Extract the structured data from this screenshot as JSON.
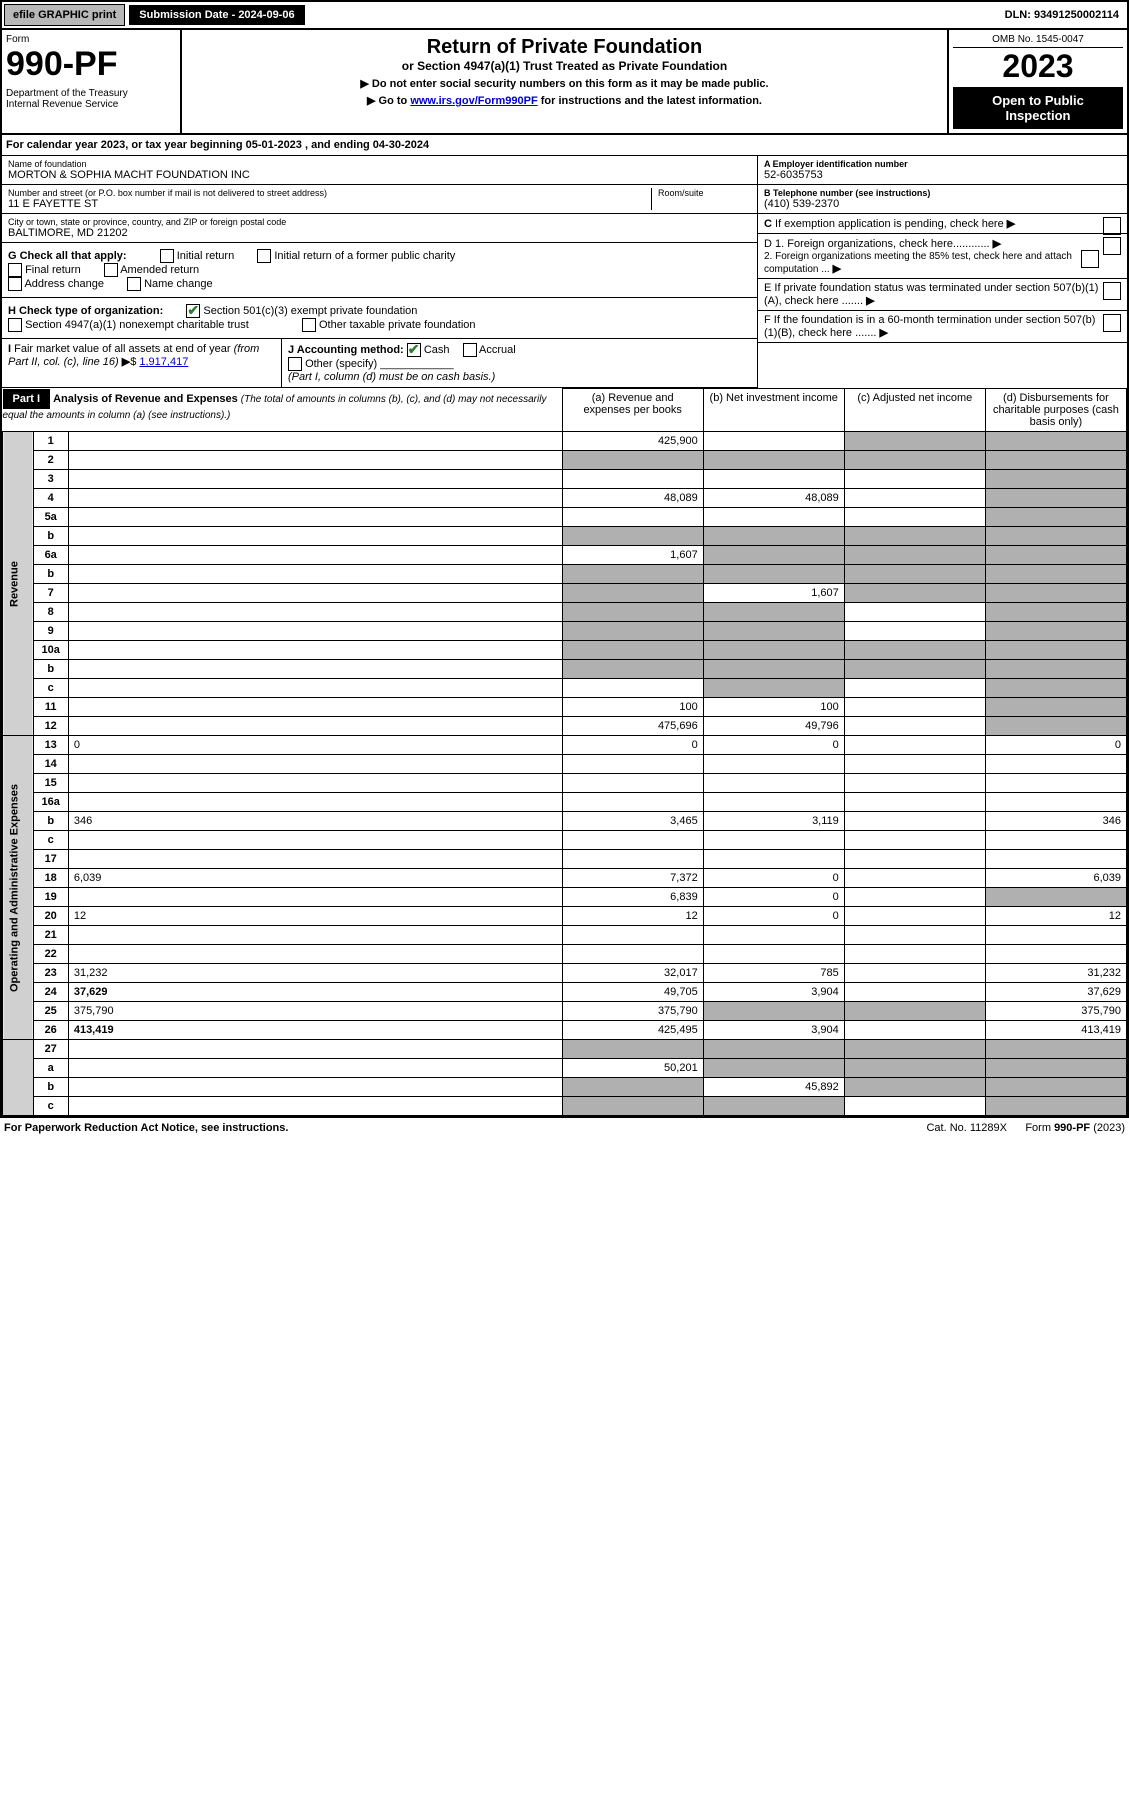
{
  "topbar": {
    "efile": "efile GRAPHIC print",
    "subdate_label": "Submission Date - 2024-09-06",
    "dln": "DLN: 93491250002114"
  },
  "header": {
    "form_label": "Form",
    "form_num": "990-PF",
    "dept": "Department of the Treasury\nInternal Revenue Service",
    "title": "Return of Private Foundation",
    "subtitle": "or Section 4947(a)(1) Trust Treated as Private Foundation",
    "instr1": "▶ Do not enter social security numbers on this form as it may be made public.",
    "instr2_pre": "▶ Go to ",
    "instr2_link": "www.irs.gov/Form990PF",
    "instr2_post": " for instructions and the latest information.",
    "omb": "OMB No. 1545-0047",
    "year": "2023",
    "open_pub": "Open to Public Inspection"
  },
  "cal_year": "For calendar year 2023, or tax year beginning 05-01-2023             , and ending 04-30-2024",
  "foundation": {
    "name_label": "Name of foundation",
    "name": "MORTON & SOPHIA MACHT FOUNDATION INC",
    "addr_label": "Number and street (or P.O. box number if mail is not delivered to street address)",
    "addr": "11 E FAYETTE ST",
    "room_label": "Room/suite",
    "city_label": "City or town, state or province, country, and ZIP or foreign postal code",
    "city": "BALTIMORE, MD  21202",
    "ein_label": "A Employer identification number",
    "ein": "52-6035753",
    "phone_label": "B Telephone number (see instructions)",
    "phone": "(410) 539-2370",
    "c_label": "C If exemption application is pending, check here",
    "d1": "D 1. Foreign organizations, check here............",
    "d2": "2. Foreign organizations meeting the 85% test, check here and attach computation ...",
    "e_label": "E  If private foundation status was terminated under section 507(b)(1)(A), check here .......",
    "f_label": "F  If the foundation is in a 60-month termination under section 507(b)(1)(B), check here ......."
  },
  "g": {
    "label": "G Check all that apply:",
    "opts": [
      "Initial return",
      "Final return",
      "Address change",
      "Initial return of a former public charity",
      "Amended return",
      "Name change"
    ]
  },
  "h": {
    "label": "H Check type of organization:",
    "opt1": "Section 501(c)(3) exempt private foundation",
    "opt2": "Section 4947(a)(1) nonexempt charitable trust",
    "opt3": "Other taxable private foundation"
  },
  "i": {
    "label": "I Fair market value of all assets at end of year (from Part II, col. (c), line 16)",
    "value": "1,917,417"
  },
  "j": {
    "label": "J Accounting method:",
    "cash": "Cash",
    "accrual": "Accrual",
    "other": "Other (specify)",
    "note": "(Part I, column (d) must be on cash basis.)"
  },
  "part1": {
    "bar": "Part I",
    "title": "Analysis of Revenue and Expenses",
    "title_note": "(The total of amounts in columns (b), (c), and (d) may not necessarily equal the amounts in column (a) (see instructions).)",
    "col_a": "(a)  Revenue and expenses per books",
    "col_b": "(b)  Net investment income",
    "col_c": "(c)  Adjusted net income",
    "col_d": "(d)  Disbursements for charitable purposes (cash basis only)"
  },
  "rev_label": "Revenue",
  "exp_label": "Operating and Administrative Expenses",
  "rows": {
    "r1": {
      "n": "1",
      "d": "",
      "a": "425,900",
      "b": "",
      "c": "",
      "sh": [
        "c",
        "d"
      ]
    },
    "r2": {
      "n": "2",
      "d": "",
      "a": "",
      "b": "",
      "c": "",
      "sh": [
        "a",
        "b",
        "c",
        "d"
      ]
    },
    "r3": {
      "n": "3",
      "d": "",
      "a": "",
      "b": "",
      "c": "",
      "sh": [
        "d"
      ]
    },
    "r4": {
      "n": "4",
      "d": "",
      "a": "48,089",
      "b": "48,089",
      "c": "",
      "sh": [
        "d"
      ]
    },
    "r5a": {
      "n": "5a",
      "d": "",
      "a": "",
      "b": "",
      "c": "",
      "sh": [
        "d"
      ]
    },
    "r5b": {
      "n": "b",
      "d": "",
      "a": "",
      "b": "",
      "c": "",
      "sh": [
        "a",
        "b",
        "c",
        "d"
      ]
    },
    "r6a": {
      "n": "6a",
      "d": "",
      "a": "1,607",
      "b": "",
      "c": "",
      "sh": [
        "b",
        "c",
        "d"
      ]
    },
    "r6b": {
      "n": "b",
      "d": "",
      "a": "",
      "b": "",
      "c": "",
      "sh": [
        "a",
        "b",
        "c",
        "d"
      ]
    },
    "r7": {
      "n": "7",
      "d": "",
      "a": "",
      "b": "1,607",
      "c": "",
      "sh": [
        "a",
        "c",
        "d"
      ]
    },
    "r8": {
      "n": "8",
      "d": "",
      "a": "",
      "b": "",
      "c": "",
      "sh": [
        "a",
        "b",
        "d"
      ]
    },
    "r9": {
      "n": "9",
      "d": "",
      "a": "",
      "b": "",
      "c": "",
      "sh": [
        "a",
        "b",
        "d"
      ]
    },
    "r10a": {
      "n": "10a",
      "d": "",
      "a": "",
      "b": "",
      "c": "",
      "sh": [
        "a",
        "b",
        "c",
        "d"
      ]
    },
    "r10b": {
      "n": "b",
      "d": "",
      "a": "",
      "b": "",
      "c": "",
      "sh": [
        "a",
        "b",
        "c",
        "d"
      ]
    },
    "r10c": {
      "n": "c",
      "d": "",
      "a": "",
      "b": "",
      "c": "",
      "sh": [
        "b",
        "d"
      ]
    },
    "r11": {
      "n": "11",
      "d": "",
      "a": "100",
      "b": "100",
      "c": "",
      "sh": [
        "d"
      ]
    },
    "r12": {
      "n": "12",
      "d": "",
      "a": "475,696",
      "b": "49,796",
      "c": "",
      "sh": [
        "d"
      ],
      "bold": true
    },
    "r13": {
      "n": "13",
      "d": "0",
      "a": "0",
      "b": "0",
      "c": "",
      "sh": []
    },
    "r14": {
      "n": "14",
      "d": "",
      "a": "",
      "b": "",
      "c": "",
      "sh": []
    },
    "r15": {
      "n": "15",
      "d": "",
      "a": "",
      "b": "",
      "c": "",
      "sh": []
    },
    "r16a": {
      "n": "16a",
      "d": "",
      "a": "",
      "b": "",
      "c": "",
      "sh": []
    },
    "r16b": {
      "n": "b",
      "d": "346",
      "a": "3,465",
      "b": "3,119",
      "c": "",
      "sh": []
    },
    "r16c": {
      "n": "c",
      "d": "",
      "a": "",
      "b": "",
      "c": "",
      "sh": []
    },
    "r17": {
      "n": "17",
      "d": "",
      "a": "",
      "b": "",
      "c": "",
      "sh": []
    },
    "r18": {
      "n": "18",
      "d": "6,039",
      "a": "7,372",
      "b": "0",
      "c": "",
      "sh": []
    },
    "r19": {
      "n": "19",
      "d": "",
      "a": "6,839",
      "b": "0",
      "c": "",
      "sh": [
        "d"
      ]
    },
    "r20": {
      "n": "20",
      "d": "12",
      "a": "12",
      "b": "0",
      "c": "",
      "sh": []
    },
    "r21": {
      "n": "21",
      "d": "",
      "a": "",
      "b": "",
      "c": "",
      "sh": []
    },
    "r22": {
      "n": "22",
      "d": "",
      "a": "",
      "b": "",
      "c": "",
      "sh": []
    },
    "r23": {
      "n": "23",
      "d": "31,232",
      "a": "32,017",
      "b": "785",
      "c": "",
      "sh": []
    },
    "r24": {
      "n": "24",
      "d": "37,629",
      "a": "49,705",
      "b": "3,904",
      "c": "",
      "sh": [],
      "bold": true
    },
    "r25": {
      "n": "25",
      "d": "375,790",
      "a": "375,790",
      "b": "",
      "c": "",
      "sh": [
        "b",
        "c"
      ]
    },
    "r26": {
      "n": "26",
      "d": "413,419",
      "a": "425,495",
      "b": "3,904",
      "c": "",
      "sh": [],
      "bold": true
    },
    "r27": {
      "n": "27",
      "d": "",
      "a": "",
      "b": "",
      "c": "",
      "sh": [
        "a",
        "b",
        "c",
        "d"
      ]
    },
    "r27a": {
      "n": "a",
      "d": "",
      "a": "50,201",
      "b": "",
      "c": "",
      "sh": [
        "b",
        "c",
        "d"
      ],
      "bold": true
    },
    "r27b": {
      "n": "b",
      "d": "",
      "a": "",
      "b": "45,892",
      "c": "",
      "sh": [
        "a",
        "c",
        "d"
      ],
      "bold": true
    },
    "r27c": {
      "n": "c",
      "d": "",
      "a": "",
      "b": "",
      "c": "",
      "sh": [
        "a",
        "b",
        "d"
      ],
      "bold": true
    }
  },
  "footer": {
    "left": "For Paperwork Reduction Act Notice, see instructions.",
    "cat": "Cat. No. 11289X",
    "form": "Form 990-PF (2023)"
  }
}
